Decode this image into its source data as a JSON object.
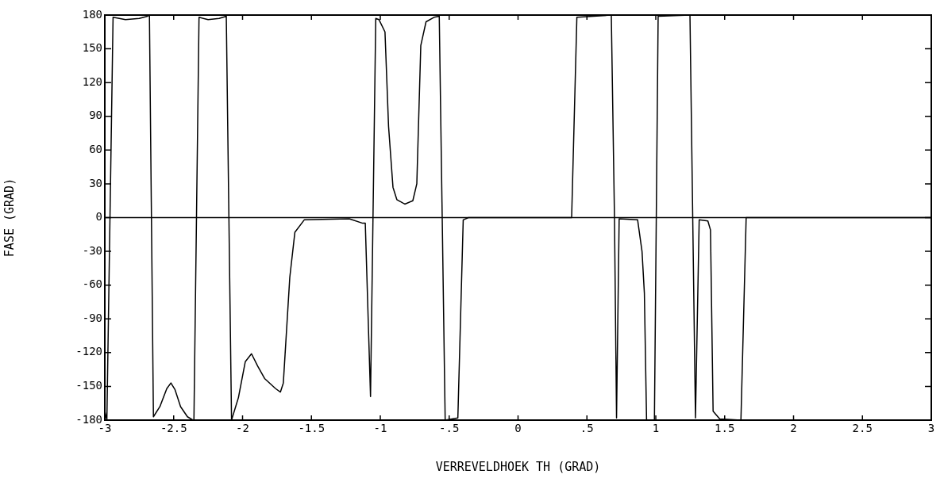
{
  "chart_data": {
    "type": "line",
    "xlabel": "VERREVELDHOEK TH (GRAD)",
    "ylabel": "FASE (GRAD)",
    "xlim": [
      -3,
      3
    ],
    "ylim": [
      -180,
      180
    ],
    "xticks": [
      -3,
      {
        "value": -2.5,
        "label": "-2.5"
      },
      -2,
      {
        "value": -1.5,
        "label": "-1.5"
      },
      -1,
      {
        "value": -0.5,
        "label": "-.5"
      },
      0,
      {
        "value": 0.5,
        "label": ".5"
      },
      1,
      {
        "value": 1.5,
        "label": "1.5"
      },
      2,
      {
        "value": 2.5,
        "label": "2.5"
      },
      3
    ],
    "yticks": [
      -180,
      -150,
      -120,
      -90,
      -60,
      -30,
      0,
      30,
      60,
      90,
      120,
      150,
      180
    ],
    "grid": false,
    "legend": false,
    "marker": "none",
    "line_style": "solid",
    "ref_lines": [
      {
        "axis": "y",
        "value": 0,
        "color": "#000000"
      }
    ],
    "series": [
      {
        "color": "#000000",
        "x": [
          -3,
          -2.985,
          -2.94,
          -2.85,
          -2.75,
          -2.69,
          -2.676,
          -2.647,
          -2.6,
          -2.55,
          -2.52,
          -2.49,
          -2.45,
          -2.4,
          -2.36,
          -2.353,
          -2.316,
          -2.25,
          -2.17,
          -2.118,
          -2.08,
          -2.03,
          -1.98,
          -1.935,
          -1.89,
          -1.84,
          -1.76,
          -1.725,
          -1.704,
          -1.657,
          -1.62,
          -1.552,
          -1.225,
          -1.128,
          -1.109,
          -1.071,
          -1.033,
          -1.01,
          -0.966,
          -0.94,
          -0.908,
          -0.88,
          -0.822,
          -0.764,
          -0.735,
          -0.706,
          -0.668,
          -0.61,
          -0.572,
          -0.529,
          -0.437,
          -0.398,
          -0.36,
          0.389,
          0.427,
          0.677,
          0.7,
          0.715,
          0.734,
          0.868,
          0.9,
          0.917,
          0.933,
          0.99,
          1.017,
          1.248,
          1.288,
          1.315,
          1.378,
          1.397,
          1.416,
          1.464,
          1.618,
          1.656,
          3
        ],
        "values": [
          -172,
          -180,
          178,
          176,
          177,
          179,
          180,
          -177,
          -168,
          -152,
          -147,
          -153,
          -168,
          -177,
          -180,
          -180,
          178,
          176,
          177,
          179,
          -180,
          -160,
          -128,
          -121,
          -132,
          -143,
          -152,
          -155,
          -147,
          -53,
          -13,
          -2,
          -1,
          -5,
          -5,
          -159,
          177,
          176,
          165,
          81,
          27,
          16,
          12,
          15,
          30,
          153,
          174,
          178,
          179,
          -180,
          -178,
          -2,
          0,
          0,
          178,
          180,
          0,
          -178,
          -1,
          -2,
          -30,
          -67,
          -180,
          -180,
          179,
          180,
          -178,
          -2,
          -3,
          -11,
          -172,
          -179,
          -180,
          0,
          0
        ]
      }
    ]
  }
}
